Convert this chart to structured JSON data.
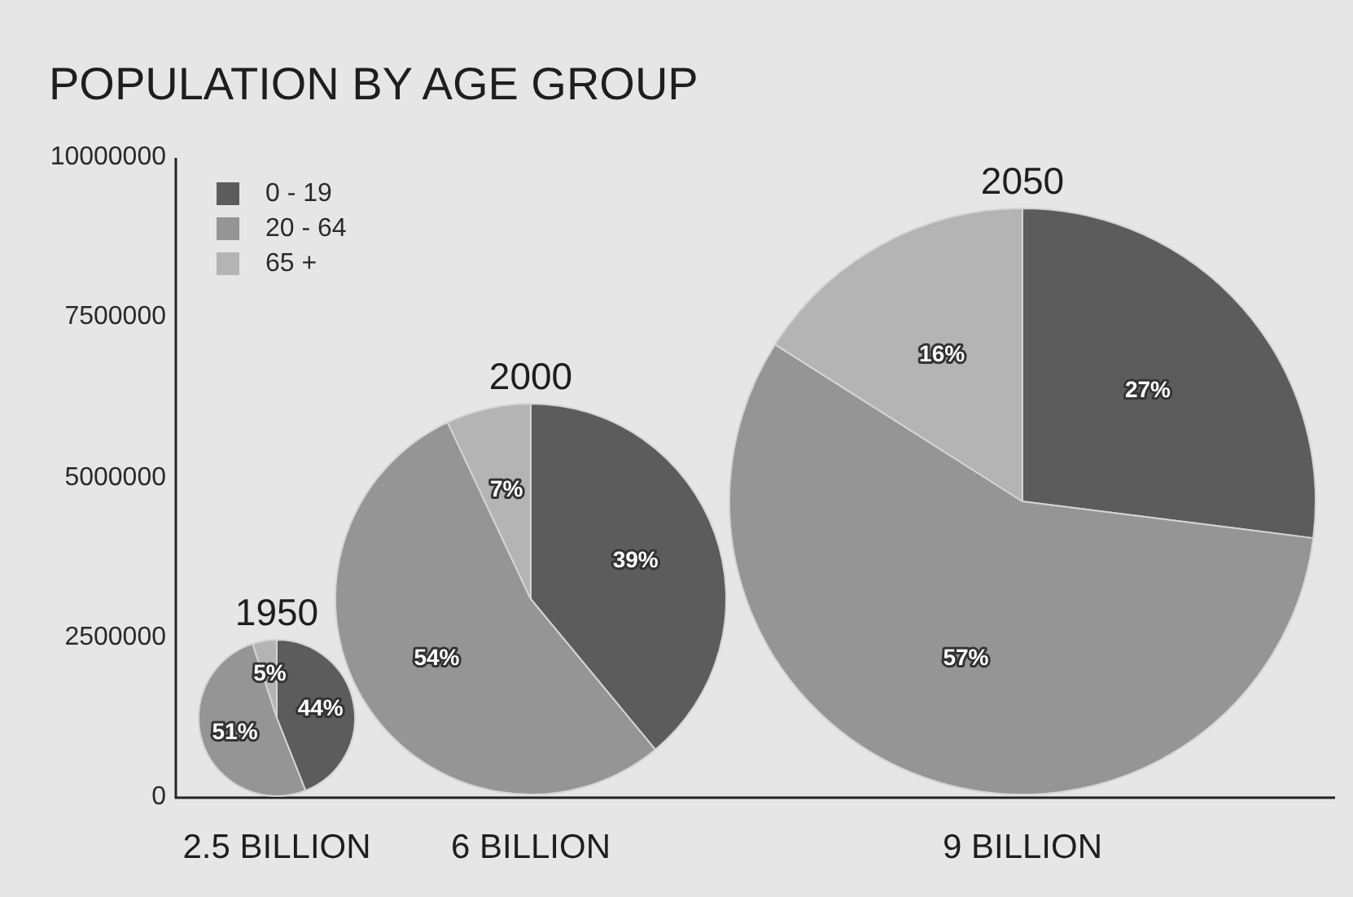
{
  "chart_data": {
    "type": "pie",
    "title": "POPULATION BY AGE GROUP",
    "categories": [
      "0 - 19",
      "20 - 64",
      "65 +"
    ],
    "colors": [
      "#5c5c5c",
      "#959595",
      "#b4b4b4"
    ],
    "series": [
      {
        "name": "1950",
        "values": [
          44,
          51,
          5
        ],
        "value_labels": [
          "44%",
          "51%",
          "5%"
        ]
      },
      {
        "name": "2000",
        "values": [
          39,
          54,
          7
        ],
        "value_labels": [
          "39%",
          "54%",
          "7%"
        ]
      },
      {
        "name": "2050",
        "values": [
          27,
          57,
          16
        ],
        "value_labels": [
          "27%",
          "57%",
          "16%"
        ]
      }
    ],
    "annotations": [
      "10000000",
      "7500000",
      "5000000",
      "2500000",
      "0",
      "2.5 BILLION",
      "6 BILLION",
      "9 BILLION"
    ],
    "legend": "top left"
  }
}
